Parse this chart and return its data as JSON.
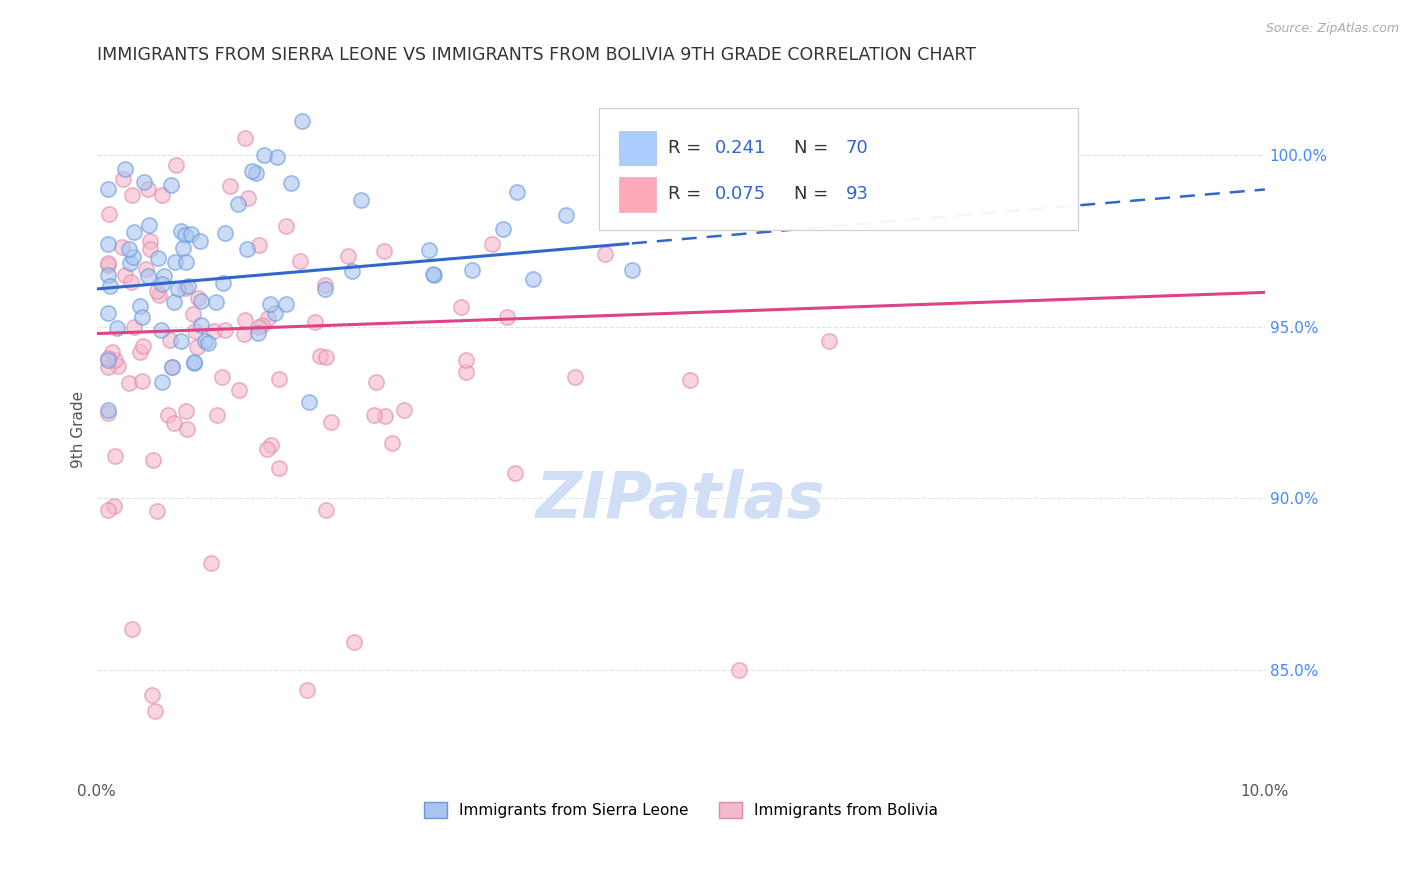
{
  "title": "IMMIGRANTS FROM SIERRA LEONE VS IMMIGRANTS FROM BOLIVIA 9TH GRADE CORRELATION CHART",
  "source_text": "Source: ZipAtlas.com",
  "ylabel_label": "9th Grade",
  "x_range": [
    0.0,
    0.1
  ],
  "y_range": [
    0.818,
    1.022
  ],
  "y_ticks": [
    0.85,
    0.9,
    0.95,
    1.0
  ],
  "y_tick_labels": [
    "85.0%",
    "90.0%",
    "95.0%",
    "100.0%"
  ],
  "series_blue": {
    "name": "Immigrants from Sierra Leone",
    "R": 0.241,
    "N": 70,
    "color": "#aac4f0",
    "edge_color": "#6699dd",
    "marker_size": 120
  },
  "series_pink": {
    "name": "Immigrants from Bolivia",
    "R": 0.075,
    "N": 93,
    "color": "#f5b8cc",
    "edge_color": "#e088aa",
    "marker_size": 120
  },
  "trendline_blue_color": "#3366cc",
  "trendline_pink_color": "#dd4488",
  "watermark_text": "ZIPatlas",
  "watermark_color": "#d0dff5",
  "background_color": "#ffffff",
  "title_color": "#333333",
  "title_fontsize": 12.5,
  "right_tick_color": "#4488ff",
  "grid_color": "#e0e0e0",
  "source_color": "#aaaaaa"
}
